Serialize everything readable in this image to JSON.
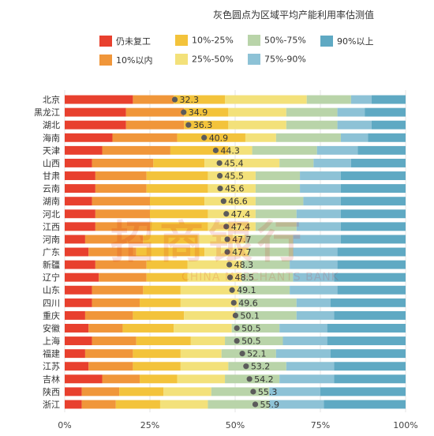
{
  "note": "灰色圆点为区域平均产能利用率估测值",
  "watermark": {
    "cn": "招商银行",
    "en": "CHINA MERCHANTS BANK"
  },
  "chart_data": {
    "type": "bar",
    "orientation": "horizontal",
    "stacked": true,
    "xlim": [
      0,
      100
    ],
    "x_ticks": [
      "0%",
      "25%",
      "50%",
      "75%",
      "100%"
    ],
    "categories": [
      "北京",
      "黑龙江",
      "湖北",
      "海南",
      "天津",
      "山西",
      "甘肃",
      "云南",
      "湖南",
      "河北",
      "江西",
      "河南",
      "广东",
      "新疆",
      "辽宁",
      "山东",
      "四川",
      "重庆",
      "安徽",
      "上海",
      "福建",
      "江苏",
      "吉林",
      "陕西",
      "浙江"
    ],
    "series": [
      {
        "name": "仍未复工",
        "color": "#e8402e",
        "values": [
          20,
          18,
          18,
          14,
          11,
          8,
          9,
          9,
          8,
          9,
          9,
          6,
          7,
          9,
          10,
          8,
          8,
          6,
          7,
          8,
          6,
          7,
          11,
          5,
          5
        ]
      },
      {
        "name": "10%以内",
        "color": "#f0963a",
        "values": [
          12,
          17,
          17,
          19,
          20,
          18,
          15,
          15,
          17,
          16,
          16,
          17,
          14,
          15,
          14,
          15,
          14,
          14,
          10,
          13,
          14,
          13,
          11,
          11,
          10
        ]
      },
      {
        "name": "10%-25%",
        "color": "#f3c33b",
        "values": [
          15,
          13,
          13,
          20,
          17,
          15,
          18,
          18,
          16,
          17,
          17,
          16,
          20,
          12,
          12,
          11,
          12,
          15,
          15,
          16,
          14,
          14,
          11,
          13,
          13
        ]
      },
      {
        "name": "25%-50%",
        "color": "#f3e17a",
        "values": [
          24,
          17,
          17,
          9,
          7,
          22,
          14,
          14,
          15,
          14,
          14,
          14,
          13,
          16,
          16,
          17,
          17,
          15,
          17,
          10,
          12,
          14,
          14,
          14,
          14
        ]
      },
      {
        "name": "50%-75%",
        "color": "#b9d4a9",
        "values": [
          13,
          15,
          15,
          19,
          19,
          10,
          13,
          13,
          14,
          12,
          12,
          14,
          13,
          14,
          15,
          15,
          17,
          18,
          14,
          17,
          16,
          17,
          16,
          17,
          18
        ]
      },
      {
        "name": "75%-90%",
        "color": "#8dc2d6",
        "values": [
          6,
          8,
          10,
          8,
          12,
          11,
          12,
          12,
          11,
          13,
          13,
          14,
          13,
          14,
          12,
          14,
          10,
          11,
          14,
          13,
          16,
          14,
          16,
          15,
          16
        ]
      },
      {
        "name": "90%以上",
        "color": "#5fa9c3",
        "values": [
          10,
          12,
          10,
          11,
          14,
          16,
          19,
          19,
          19,
          19,
          19,
          19,
          20,
          20,
          21,
          20,
          22,
          21,
          23,
          23,
          22,
          21,
          21,
          25,
          24
        ]
      }
    ],
    "average_points": [
      32.3,
      34.9,
      36.3,
      40.9,
      44.3,
      45.4,
      45.5,
      45.6,
      46.6,
      47.4,
      47.4,
      47.7,
      47.7,
      48.3,
      48.5,
      49.1,
      49.6,
      50.1,
      50.5,
      50.5,
      52.1,
      53.2,
      54.2,
      55.3,
      55.9
    ],
    "average_labels": [
      "32.3",
      "34.9",
      "36.3",
      "40.9",
      "44.3",
      "45.4",
      "45.5",
      "45.6",
      "46.6",
      "47.4",
      "47.4",
      "47.7",
      "47.7",
      "48.3",
      "48.5",
      "49.1",
      "49.6",
      "50.1",
      "50.5",
      "50.5",
      "52.1",
      "53.2",
      "54.2",
      "55.3",
      "55.9"
    ],
    "grid": true,
    "legend_position": "top"
  }
}
